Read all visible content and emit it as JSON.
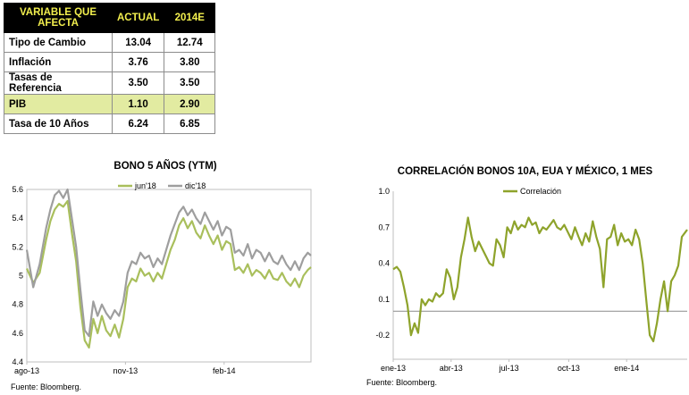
{
  "table": {
    "headers": [
      "VARIABLE QUE AFECTA",
      "ACTUAL",
      "2014E"
    ],
    "rows": [
      {
        "label": "Tipo de Cambio",
        "actual": "13.04",
        "e2014": "12.74",
        "highlight": false
      },
      {
        "label": "Inflación",
        "actual": "3.76",
        "e2014": "3.80",
        "highlight": false
      },
      {
        "label": "Tasas de Referencia",
        "actual": "3.50",
        "e2014": "3.50",
        "highlight": false
      },
      {
        "label": "PIB",
        "actual": "1.10",
        "e2014": "2.90",
        "highlight": true
      },
      {
        "label": "Tasa de 10 Años",
        "actual": "6.24",
        "e2014": "6.85",
        "highlight": false
      }
    ]
  },
  "chart_data": [
    {
      "type": "line",
      "title": "BONO 5 AÑOS (YTM)",
      "xlabel": "",
      "ylabel": "",
      "ylim": [
        4.4,
        5.6
      ],
      "yticks": [
        "5.6",
        "5.4",
        "5.2",
        "5",
        "4.8",
        "4.6",
        "4.4"
      ],
      "xticks": [
        {
          "label": "ago-13",
          "x": 0
        },
        {
          "label": "nov-13",
          "x": 92
        },
        {
          "label": "feb-14",
          "x": 184
        }
      ],
      "xlim": [
        0,
        265
      ],
      "legend_position": "top-right",
      "source": "Fuente: Bloomberg.",
      "series": [
        {
          "name": "jun'18",
          "color": "#a9bf5c",
          "x": [
            0,
            6,
            12,
            18,
            22,
            26,
            30,
            34,
            38,
            42,
            46,
            50,
            54,
            58,
            62,
            66,
            70,
            74,
            78,
            82,
            86,
            90,
            94,
            98,
            102,
            106,
            110,
            114,
            118,
            122,
            126,
            130,
            134,
            138,
            142,
            146,
            150,
            154,
            158,
            162,
            166,
            170,
            174,
            178,
            182,
            186,
            190,
            194,
            198,
            202,
            206,
            210,
            214,
            218,
            222,
            226,
            230,
            234,
            238,
            242,
            246,
            250,
            254,
            258,
            262,
            265
          ],
          "y": [
            5.05,
            4.95,
            5.02,
            5.25,
            5.38,
            5.46,
            5.5,
            5.48,
            5.52,
            5.3,
            5.1,
            4.78,
            4.55,
            4.5,
            4.7,
            4.6,
            4.72,
            4.62,
            4.58,
            4.66,
            4.57,
            4.7,
            4.92,
            4.98,
            4.96,
            5.05,
            5.0,
            5.02,
            4.96,
            5.02,
            4.98,
            5.08,
            5.18,
            5.25,
            5.35,
            5.4,
            5.33,
            5.38,
            5.3,
            5.26,
            5.35,
            5.28,
            5.22,
            5.28,
            5.18,
            5.24,
            5.22,
            5.04,
            5.06,
            5.02,
            5.08,
            5.0,
            5.04,
            5.02,
            4.98,
            5.04,
            4.98,
            4.97,
            5.02,
            4.96,
            4.93,
            4.98,
            4.92,
            5.0,
            5.04,
            5.06
          ]
        },
        {
          "name": "dic'18",
          "color": "#9e9e9e",
          "x": [
            0,
            6,
            12,
            18,
            22,
            26,
            30,
            34,
            38,
            42,
            46,
            50,
            54,
            58,
            62,
            66,
            70,
            74,
            78,
            82,
            86,
            90,
            94,
            98,
            102,
            106,
            110,
            114,
            118,
            122,
            126,
            130,
            134,
            138,
            142,
            146,
            150,
            154,
            158,
            162,
            166,
            170,
            174,
            178,
            182,
            186,
            190,
            194,
            198,
            202,
            206,
            210,
            214,
            218,
            222,
            226,
            230,
            234,
            238,
            242,
            246,
            250,
            254,
            258,
            262,
            265
          ],
          "y": [
            5.18,
            4.92,
            5.08,
            5.33,
            5.46,
            5.56,
            5.59,
            5.54,
            5.6,
            5.4,
            5.2,
            4.9,
            4.62,
            4.58,
            4.82,
            4.72,
            4.8,
            4.74,
            4.7,
            4.76,
            4.72,
            4.82,
            5.02,
            5.1,
            5.08,
            5.16,
            5.12,
            5.14,
            5.06,
            5.12,
            5.08,
            5.18,
            5.28,
            5.36,
            5.44,
            5.48,
            5.42,
            5.46,
            5.4,
            5.36,
            5.44,
            5.38,
            5.32,
            5.38,
            5.28,
            5.34,
            5.32,
            5.16,
            5.18,
            5.14,
            5.22,
            5.12,
            5.18,
            5.16,
            5.1,
            5.16,
            5.1,
            5.08,
            5.14,
            5.08,
            5.04,
            5.1,
            5.04,
            5.12,
            5.16,
            5.14
          ]
        }
      ]
    },
    {
      "type": "line",
      "title": "CORRELACIÓN BONOS 10A, EUA Y MÉXICO, 1 MES",
      "xlabel": "",
      "ylabel": "",
      "ylim": [
        -0.4,
        1.0
      ],
      "yticks": [
        "1.0",
        "0.7",
        "0.4",
        "0.1",
        "-0.2"
      ],
      "xticks": [
        {
          "label": "ene-13",
          "x": 0
        },
        {
          "label": "abr-13",
          "x": 65
        },
        {
          "label": "jul-13",
          "x": 130
        },
        {
          "label": "oct-13",
          "x": 197
        },
        {
          "label": "ene-14",
          "x": 262
        }
      ],
      "xlim": [
        0,
        330
      ],
      "legend_position": "top-left",
      "source": "Fuente: Bloomberg.",
      "series": [
        {
          "name": "Correlación",
          "color": "#8ea32b",
          "x": [
            0,
            4,
            8,
            12,
            16,
            20,
            24,
            28,
            32,
            36,
            40,
            44,
            48,
            52,
            56,
            60,
            64,
            68,
            72,
            76,
            80,
            84,
            88,
            92,
            96,
            100,
            104,
            108,
            112,
            116,
            120,
            124,
            128,
            132,
            136,
            140,
            144,
            148,
            152,
            156,
            160,
            164,
            168,
            172,
            176,
            180,
            184,
            188,
            192,
            196,
            200,
            204,
            208,
            212,
            216,
            220,
            224,
            228,
            232,
            236,
            240,
            244,
            248,
            252,
            256,
            260,
            264,
            268,
            272,
            276,
            280,
            284,
            288,
            292,
            296,
            300,
            304,
            308,
            312,
            316,
            320,
            324,
            328,
            330
          ],
          "y": [
            0.35,
            0.37,
            0.33,
            0.2,
            0.05,
            -0.2,
            -0.1,
            -0.18,
            0.1,
            0.05,
            0.1,
            0.08,
            0.15,
            0.12,
            0.15,
            0.35,
            0.28,
            0.1,
            0.2,
            0.45,
            0.6,
            0.78,
            0.62,
            0.5,
            0.58,
            0.52,
            0.46,
            0.4,
            0.38,
            0.6,
            0.55,
            0.45,
            0.7,
            0.65,
            0.75,
            0.68,
            0.72,
            0.7,
            0.78,
            0.72,
            0.74,
            0.65,
            0.7,
            0.68,
            0.72,
            0.76,
            0.7,
            0.68,
            0.72,
            0.66,
            0.6,
            0.7,
            0.62,
            0.55,
            0.65,
            0.58,
            0.75,
            0.62,
            0.52,
            0.2,
            0.6,
            0.62,
            0.72,
            0.55,
            0.65,
            0.58,
            0.6,
            0.55,
            0.68,
            0.6,
            0.4,
            0.1,
            -0.2,
            -0.25,
            -0.1,
            0.1,
            0.25,
            0.0,
            0.25,
            0.3,
            0.38,
            0.62,
            0.66,
            0.68
          ]
        }
      ]
    }
  ]
}
